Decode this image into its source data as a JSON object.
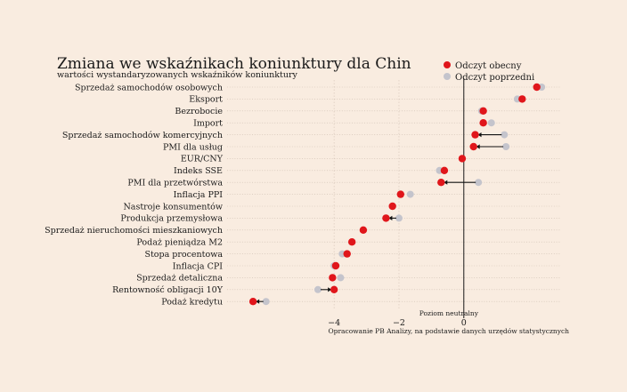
{
  "chart_data": {
    "type": "scatter",
    "title": "Zmiana we wskaźnikach koniunktury dla Chin",
    "subtitle": "wartości wystandaryzowanych wskaźników koniunktury",
    "categories": [
      "Sprzedaż samochodów osobowych",
      "Eksport",
      "Bezrobocie",
      "Import",
      "Sprzedaż samochodów komercyjnych",
      "PMI dla usług",
      "EUR/CNY",
      "Indeks SSE",
      "PMI dla przetwórstwa",
      "Inflacja PPI",
      "Nastroje konsumentów",
      "Produkcja przemysłowa",
      "Sprzedaż nieruchomości mieszkaniowych",
      "Podaż pieniądza M2",
      "Stopa procentowa",
      "Inflacja CPI",
      "Sprzedaż detaliczna",
      "Rentowność obligacji 10Y",
      "Podaż kredytu"
    ],
    "series": [
      {
        "name": "Odczyt obecny",
        "color": "#e0161b",
        "values": [
          2.25,
          1.8,
          0.6,
          0.6,
          0.35,
          0.3,
          -0.05,
          -0.6,
          -0.7,
          -1.95,
          -2.2,
          -2.4,
          -3.1,
          -3.45,
          -3.6,
          -3.95,
          -4.05,
          -4.0,
          -6.5
        ]
      },
      {
        "name": "Odczyt poprzedni",
        "color": "#c4c4cc",
        "values": [
          2.4,
          1.65,
          0.55,
          0.85,
          1.25,
          1.3,
          -0.05,
          -0.75,
          0.45,
          -1.65,
          -2.2,
          -2.0,
          -3.1,
          -3.45,
          -3.75,
          -4.0,
          -3.8,
          -4.5,
          -6.1
        ]
      }
    ],
    "xticks": [
      -4,
      -2,
      0
    ],
    "xlim": [
      -7.3,
      3.0
    ],
    "reference_line": {
      "x": 0,
      "label": "Poziom neutralny"
    },
    "legend_position": "top-right",
    "source_note": "Opracowanie PB Analizy, na podstawie danych urzędów statystycznych",
    "grid": true
  }
}
